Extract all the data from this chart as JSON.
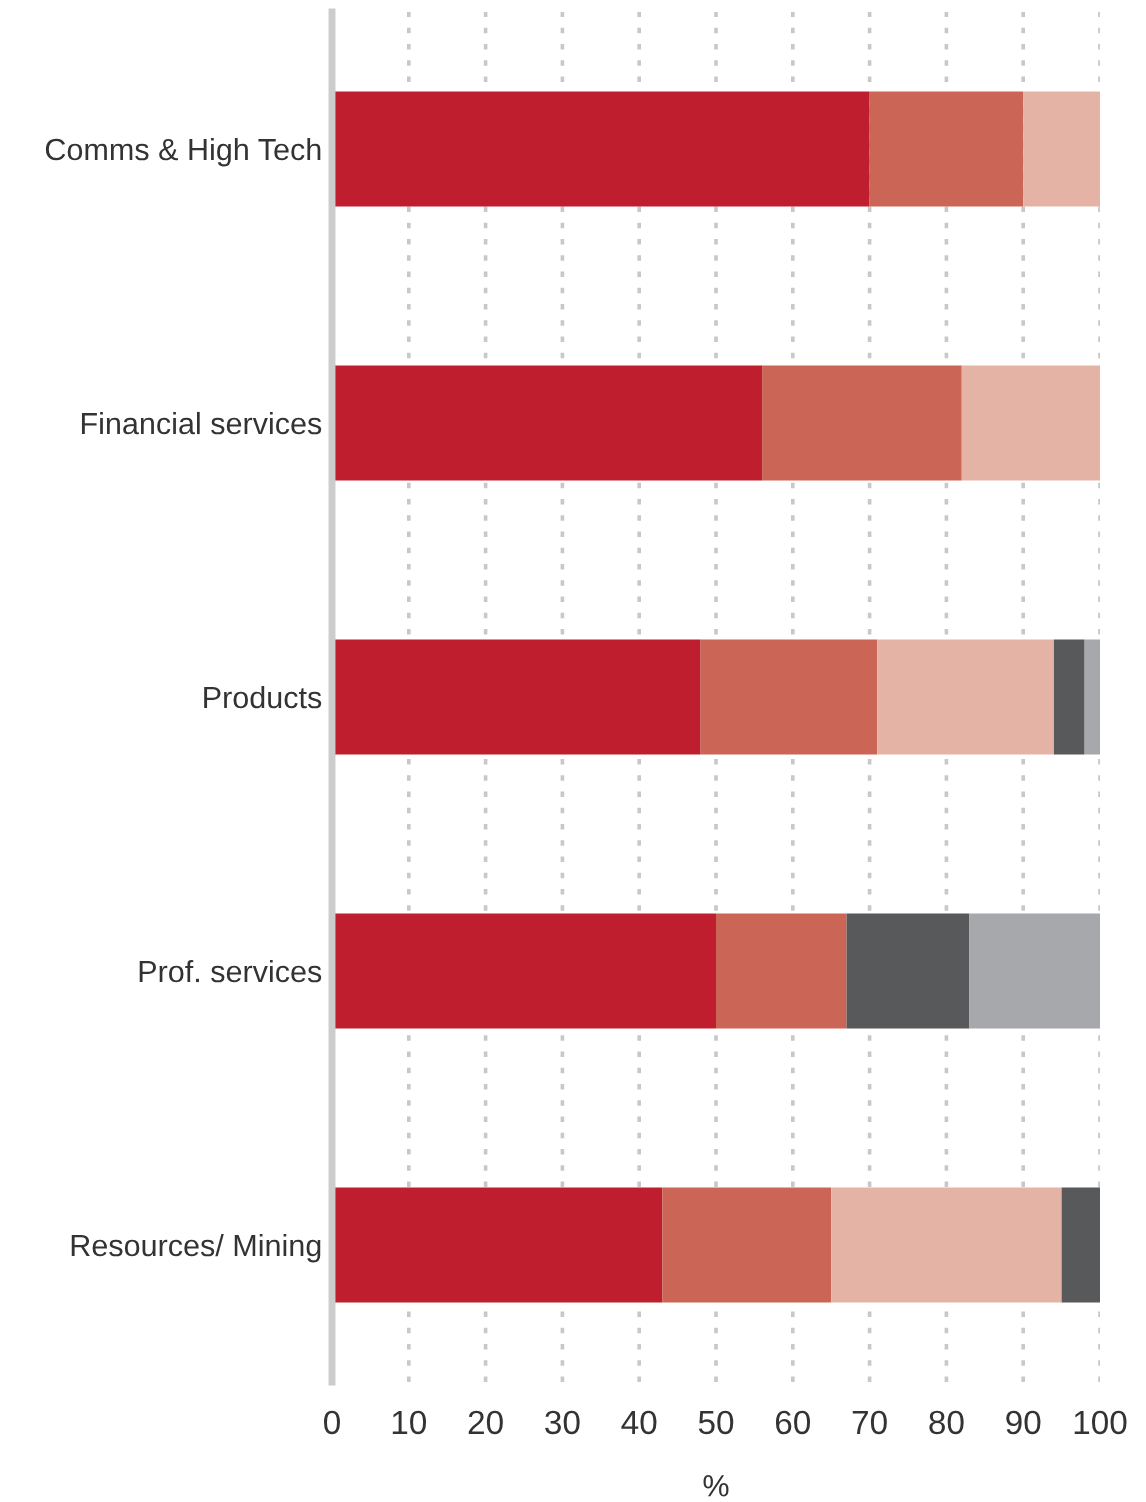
{
  "chart_data": {
    "type": "bar",
    "orientation": "horizontal",
    "stacked": true,
    "xlabel": "%",
    "categories": [
      "Comms & High Tech",
      "Financial services",
      "Products",
      "Prof. services",
      "Resources/ Mining"
    ],
    "series": [
      {
        "color": "#be1e2d",
        "values": [
          70,
          56,
          48,
          50,
          43
        ]
      },
      {
        "color": "#cb6555",
        "values": [
          20,
          26,
          23,
          17,
          22
        ]
      },
      {
        "color": "#e5b3a5",
        "values": [
          10,
          18,
          23,
          0,
          30
        ]
      },
      {
        "color": "#58595b",
        "values": [
          0,
          0,
          4,
          16,
          5
        ]
      },
      {
        "color": "#a7a8ab",
        "values": [
          0,
          0,
          2,
          17,
          0
        ]
      }
    ],
    "xlim": [
      0,
      100
    ],
    "xticks": [
      0,
      10,
      20,
      30,
      40,
      50,
      60,
      70,
      80,
      90,
      100
    ],
    "grid": "x",
    "legend": false
  }
}
